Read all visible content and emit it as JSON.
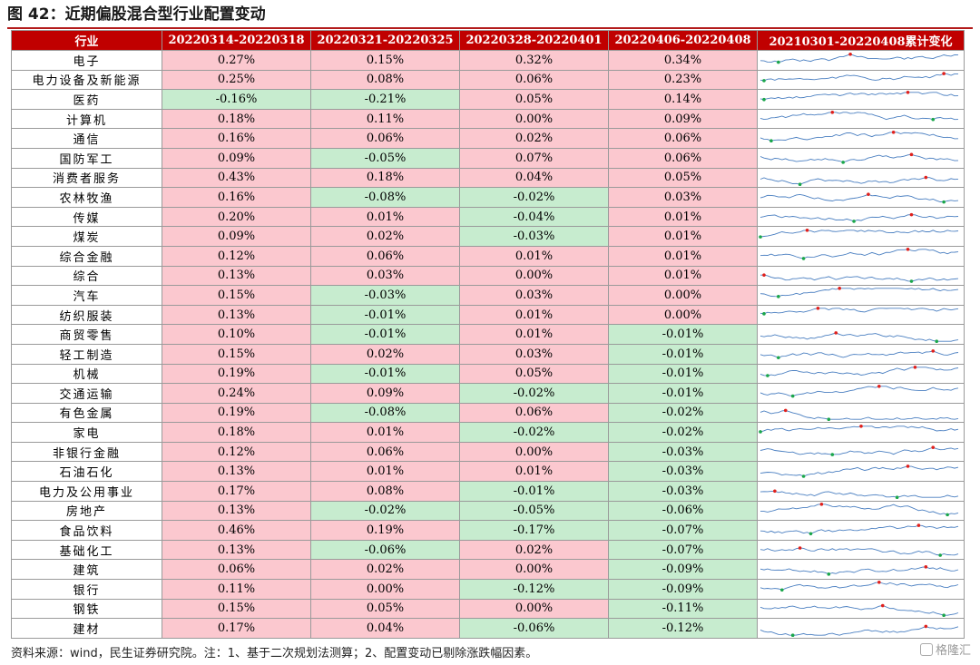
{
  "title": "图 42：近期偏股混合型行业配置变动",
  "headers": [
    "行业",
    "20220314-20220318",
    "20220321-20220325",
    "20220328-20220401",
    "20220406-20220408",
    "20210301-20220408累计变化"
  ],
  "rows": [
    {
      "industry": "电子",
      "v": [
        "0.27%",
        "0.15%",
        "0.32%",
        "0.34%"
      ]
    },
    {
      "industry": "电力设备及新能源",
      "v": [
        "0.25%",
        "0.08%",
        "0.06%",
        "0.23%"
      ]
    },
    {
      "industry": "医药",
      "v": [
        "-0.16%",
        "-0.21%",
        "0.05%",
        "0.14%"
      ]
    },
    {
      "industry": "计算机",
      "v": [
        "0.18%",
        "0.11%",
        "0.00%",
        "0.09%"
      ]
    },
    {
      "industry": "通信",
      "v": [
        "0.16%",
        "0.06%",
        "0.02%",
        "0.06%"
      ]
    },
    {
      "industry": "国防军工",
      "v": [
        "0.09%",
        "-0.05%",
        "0.07%",
        "0.06%"
      ]
    },
    {
      "industry": "消费者服务",
      "v": [
        "0.43%",
        "0.18%",
        "0.04%",
        "0.05%"
      ]
    },
    {
      "industry": "农林牧渔",
      "v": [
        "0.16%",
        "-0.08%",
        "-0.02%",
        "0.03%"
      ]
    },
    {
      "industry": "传媒",
      "v": [
        "0.20%",
        "0.01%",
        "-0.04%",
        "0.01%"
      ]
    },
    {
      "industry": "煤炭",
      "v": [
        "0.09%",
        "0.02%",
        "-0.03%",
        "0.01%"
      ]
    },
    {
      "industry": "综合金融",
      "v": [
        "0.12%",
        "0.06%",
        "0.01%",
        "0.01%"
      ]
    },
    {
      "industry": "综合",
      "v": [
        "0.13%",
        "0.03%",
        "0.00%",
        "0.01%"
      ]
    },
    {
      "industry": "汽车",
      "v": [
        "0.15%",
        "-0.03%",
        "0.03%",
        "0.00%"
      ]
    },
    {
      "industry": "纺织服装",
      "v": [
        "0.13%",
        "-0.01%",
        "0.01%",
        "0.00%"
      ]
    },
    {
      "industry": "商贸零售",
      "v": [
        "0.10%",
        "-0.01%",
        "0.01%",
        "-0.01%"
      ]
    },
    {
      "industry": "轻工制造",
      "v": [
        "0.15%",
        "0.02%",
        "0.03%",
        "-0.01%"
      ]
    },
    {
      "industry": "机械",
      "v": [
        "0.19%",
        "-0.01%",
        "0.05%",
        "-0.01%"
      ]
    },
    {
      "industry": "交通运输",
      "v": [
        "0.24%",
        "0.09%",
        "-0.02%",
        "-0.01%"
      ]
    },
    {
      "industry": "有色金属",
      "v": [
        "0.19%",
        "-0.08%",
        "0.06%",
        "-0.02%"
      ]
    },
    {
      "industry": "家电",
      "v": [
        "0.18%",
        "0.01%",
        "-0.02%",
        "-0.02%"
      ]
    },
    {
      "industry": "非银行金融",
      "v": [
        "0.12%",
        "0.06%",
        "0.00%",
        "-0.03%"
      ]
    },
    {
      "industry": "石油石化",
      "v": [
        "0.13%",
        "0.01%",
        "0.01%",
        "-0.03%"
      ]
    },
    {
      "industry": "电力及公用事业",
      "v": [
        "0.17%",
        "0.08%",
        "-0.01%",
        "-0.03%"
      ]
    },
    {
      "industry": "房地产",
      "v": [
        "0.13%",
        "-0.02%",
        "-0.05%",
        "-0.06%"
      ]
    },
    {
      "industry": "食品饮料",
      "v": [
        "0.46%",
        "0.19%",
        "-0.17%",
        "-0.07%"
      ]
    },
    {
      "industry": "基础化工",
      "v": [
        "0.13%",
        "-0.06%",
        "0.02%",
        "-0.07%"
      ]
    },
    {
      "industry": "建筑",
      "v": [
        "0.06%",
        "0.02%",
        "0.00%",
        "-0.09%"
      ]
    },
    {
      "industry": "银行",
      "v": [
        "0.11%",
        "0.00%",
        "-0.12%",
        "-0.09%"
      ]
    },
    {
      "industry": "钢铁",
      "v": [
        "0.15%",
        "0.05%",
        "0.00%",
        "-0.11%"
      ]
    },
    {
      "industry": "建材",
      "v": [
        "0.17%",
        "0.04%",
        "-0.06%",
        "-0.12%"
      ]
    }
  ],
  "colors": {
    "positive": "#fbc8cf",
    "negative": "#c7eccf",
    "header": "#c00000",
    "line": "#4a7fc1",
    "max_marker": "#e0201c",
    "min_marker": "#1aa64a"
  },
  "footer": "资料来源：wind，民生证券研究院。注：1、基于二次规划法测算；2、配置变动已剔除涨跌幅因素。",
  "watermark": "格隆汇"
}
